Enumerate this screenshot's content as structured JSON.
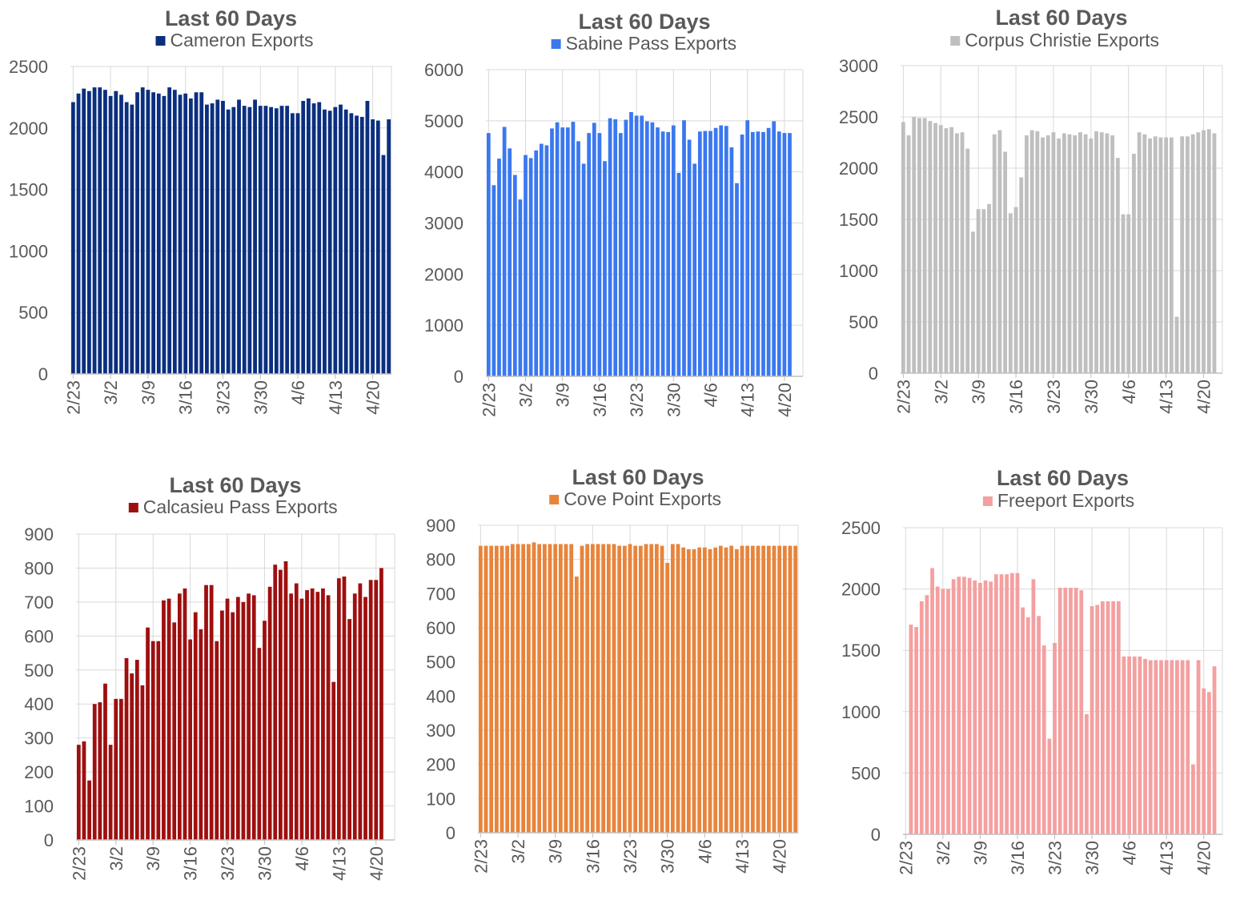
{
  "chart_data": [
    {
      "id": "cameron",
      "type": "bar",
      "title": "Last 60 Days",
      "series": [
        {
          "name": "Cameron Exports",
          "color": "#0b2f7f",
          "values": [
            2210,
            2280,
            2320,
            2300,
            2330,
            2330,
            2310,
            2260,
            2300,
            2270,
            2210,
            2190,
            2290,
            2330,
            2310,
            2290,
            2280,
            2260,
            2330,
            2310,
            2270,
            2280,
            2240,
            2290,
            2290,
            2190,
            2200,
            2230,
            2220,
            2150,
            2170,
            2230,
            2180,
            2170,
            2230,
            2180,
            2180,
            2170,
            2160,
            2180,
            2180,
            2120,
            2120,
            2220,
            2240,
            2200,
            2210,
            2150,
            2140,
            2170,
            2190,
            2150,
            2120,
            2100,
            2090,
            2220,
            2070,
            2060,
            1780,
            2070
          ]
        }
      ],
      "ylim": [
        0,
        2500
      ],
      "yticks": [
        0,
        500,
        1000,
        1500,
        2000,
        2500
      ],
      "xtick_labels": [
        "2/23",
        "3/2",
        "3/9",
        "3/16",
        "3/23",
        "3/30",
        "4/6",
        "4/13",
        "4/20"
      ],
      "grid": true
    },
    {
      "id": "sabine",
      "type": "bar",
      "title": "Last 60 Days",
      "series": [
        {
          "name": "Sabine Pass Exports",
          "color": "#3b78ef",
          "values": [
            4760,
            3740,
            4260,
            4880,
            4460,
            3940,
            3460,
            4330,
            4270,
            4420,
            4550,
            4520,
            4850,
            4970,
            4870,
            4870,
            4980,
            4600,
            4160,
            4760,
            4960,
            4760,
            4210,
            5050,
            5030,
            4760,
            5020,
            5170,
            5100,
            5100,
            4990,
            4970,
            4870,
            4790,
            4780,
            4910,
            3980,
            5010,
            4630,
            4160,
            4790,
            4800,
            4800,
            4860,
            4910,
            4900,
            4480,
            3780,
            4730,
            5010,
            4780,
            4790,
            4780,
            4860,
            4990,
            4790,
            4760,
            4760
          ]
        }
      ],
      "ylim": [
        0,
        6000
      ],
      "yticks": [
        0,
        1000,
        2000,
        3000,
        4000,
        5000,
        6000
      ],
      "xtick_labels": [
        "2/23",
        "3/2",
        "3/9",
        "3/16",
        "3/23",
        "3/30",
        "4/6",
        "4/13",
        "4/20"
      ],
      "grid": true
    },
    {
      "id": "corpus",
      "type": "bar",
      "title": "Last 60 Days",
      "series": [
        {
          "name": "Corpus Christie Exports",
          "color": "#bfbfbf",
          "values": [
            2450,
            2320,
            2500,
            2490,
            2490,
            2460,
            2440,
            2420,
            2390,
            2400,
            2340,
            2350,
            2190,
            1380,
            1600,
            1600,
            1650,
            2330,
            2370,
            2160,
            1560,
            1620,
            1910,
            2320,
            2370,
            2360,
            2300,
            2320,
            2350,
            2290,
            2340,
            2330,
            2320,
            2350,
            2330,
            2290,
            2360,
            2350,
            2340,
            2320,
            2100,
            1550,
            1550,
            2140,
            2350,
            2330,
            2290,
            2310,
            2300,
            2300,
            2300,
            550,
            2310,
            2310,
            2330,
            2350,
            2370,
            2380,
            2340
          ]
        }
      ],
      "ylim": [
        0,
        3000
      ],
      "yticks": [
        0,
        500,
        1000,
        1500,
        2000,
        2500,
        3000
      ],
      "xtick_labels": [
        "2/23",
        "3/2",
        "3/9",
        "3/16",
        "3/23",
        "3/30",
        "4/6",
        "4/13",
        "4/20"
      ],
      "grid": true
    },
    {
      "id": "calcasieu",
      "type": "bar",
      "title": "Last 60 Days",
      "series": [
        {
          "name": "Calcasieu Pass Exports",
          "color": "#9e0f0f",
          "values": [
            280,
            290,
            175,
            400,
            405,
            460,
            280,
            415,
            415,
            535,
            490,
            530,
            455,
            625,
            585,
            585,
            705,
            710,
            640,
            725,
            740,
            590,
            670,
            620,
            750,
            750,
            585,
            675,
            710,
            670,
            715,
            700,
            725,
            720,
            565,
            645,
            745,
            810,
            795,
            820,
            725,
            755,
            710,
            735,
            740,
            730,
            740,
            720,
            465,
            770,
            775,
            650,
            725,
            755,
            715,
            765,
            765,
            800
          ]
        }
      ],
      "ylim": [
        0,
        900
      ],
      "yticks": [
        0,
        100,
        200,
        300,
        400,
        500,
        600,
        700,
        800,
        900
      ],
      "xtick_labels": [
        "2/23",
        "3/2",
        "3/9",
        "3/16",
        "3/23",
        "3/30",
        "4/6",
        "4/13",
        "4/20"
      ],
      "grid": true
    },
    {
      "id": "cove",
      "type": "bar",
      "title": "Last 60 Days",
      "series": [
        {
          "name": "Cove Point Exports",
          "color": "#e8843a",
          "values": [
            840,
            840,
            840,
            840,
            840,
            840,
            845,
            845,
            845,
            845,
            850,
            845,
            845,
            845,
            845,
            845,
            845,
            845,
            750,
            840,
            845,
            845,
            845,
            845,
            845,
            845,
            840,
            840,
            845,
            840,
            840,
            845,
            845,
            845,
            840,
            790,
            845,
            845,
            835,
            830,
            830,
            835,
            835,
            830,
            835,
            840,
            835,
            840,
            830,
            840,
            840,
            840,
            840,
            840,
            840,
            840,
            840,
            840,
            840,
            840
          ]
        }
      ],
      "ylim": [
        0,
        900
      ],
      "yticks": [
        0,
        100,
        200,
        300,
        400,
        500,
        600,
        700,
        800,
        900
      ],
      "xtick_labels": [
        "2/23",
        "3/2",
        "3/9",
        "3/16",
        "3/23",
        "3/30",
        "4/6",
        "4/13",
        "4/20"
      ],
      "grid": true
    },
    {
      "id": "freeport",
      "type": "bar",
      "title": "Last 60 Days",
      "series": [
        {
          "name": "Freeport Exports",
          "color": "#f4a0a0",
          "values": [
            0,
            1710,
            1690,
            1900,
            1950,
            2170,
            2020,
            2000,
            2000,
            2080,
            2100,
            2100,
            2090,
            2070,
            2050,
            2070,
            2060,
            2120,
            2120,
            2120,
            2130,
            2130,
            1850,
            1770,
            2080,
            1780,
            1540,
            780,
            1560,
            2010,
            2010,
            2010,
            2010,
            1990,
            980,
            1860,
            1870,
            1900,
            1900,
            1900,
            1900,
            1450,
            1450,
            1450,
            1450,
            1430,
            1420,
            1420,
            1420,
            1420,
            1420,
            1420,
            1420,
            1420,
            570,
            1420,
            1190,
            1160,
            1370
          ]
        }
      ],
      "ylim": [
        0,
        2500
      ],
      "yticks": [
        0,
        500,
        1000,
        1500,
        2000,
        2500
      ],
      "xtick_labels": [
        "2/23",
        "3/2",
        "3/9",
        "3/16",
        "3/23",
        "3/30",
        "4/6",
        "4/13",
        "4/20"
      ],
      "grid": true
    }
  ]
}
